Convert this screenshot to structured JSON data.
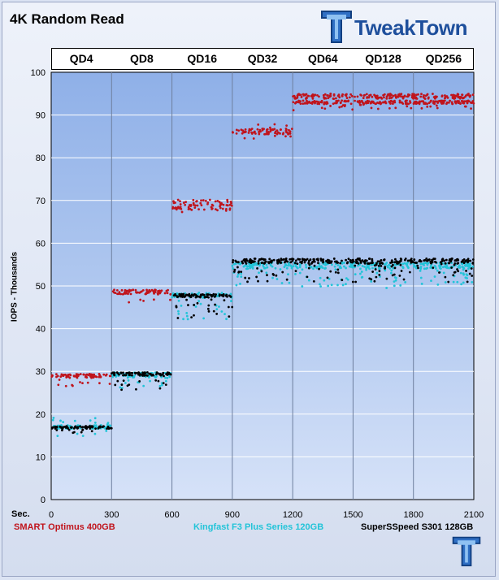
{
  "title": "4K Random Read",
  "logo": {
    "text": "TweakTown",
    "icon": "tweaktown-tt-logo-icon"
  },
  "corner_logo": {
    "icon": "tweaktown-tt-logo-icon"
  },
  "colors": {
    "smart": "#c0141c",
    "kingfast": "#22c4d8",
    "superspeed": "#000000",
    "plot_bg": "#a4bfec"
  },
  "chart_data": {
    "type": "scatter",
    "title": "4K Random Read",
    "xlabel": "Sec.",
    "ylabel": "IOPS - Thousands",
    "xlim": [
      0,
      2100
    ],
    "ylim": [
      0,
      100
    ],
    "x_ticks": [
      0,
      300,
      600,
      900,
      1200,
      1500,
      1800,
      2100
    ],
    "y_ticks": [
      0,
      10,
      20,
      30,
      40,
      50,
      60,
      70,
      80,
      90,
      100
    ],
    "grid": true,
    "legend_position": "bottom",
    "queue_depths": [
      {
        "label": "QD4",
        "start": 0,
        "end": 300
      },
      {
        "label": "QD8",
        "start": 300,
        "end": 600
      },
      {
        "label": "QD16",
        "start": 600,
        "end": 900
      },
      {
        "label": "QD32",
        "start": 900,
        "end": 1200
      },
      {
        "label": "QD64",
        "start": 1200,
        "end": 1500
      },
      {
        "label": "QD128",
        "start": 1500,
        "end": 1800
      },
      {
        "label": "QD256",
        "start": 1800,
        "end": 2100
      }
    ],
    "series": [
      {
        "name": "SMART Optimus 400GB",
        "color": "#c0141c",
        "segments": [
          {
            "x_start": 0,
            "x_end": 300,
            "bands": [
              [
                28.5,
                29.4
              ]
            ],
            "outliers": [
              26.8,
              27.5
            ]
          },
          {
            "x_start": 300,
            "x_end": 600,
            "bands": [
              [
                48.0,
                49.1
              ]
            ],
            "outliers": [
              46.5
            ]
          },
          {
            "x_start": 600,
            "x_end": 900,
            "bands": [
              [
                67.8,
                70.2
              ]
            ],
            "outliers": [
              68.0
            ]
          },
          {
            "x_start": 900,
            "x_end": 1200,
            "bands": [
              [
                85.5,
                86.8
              ]
            ],
            "outliers": [
              84.8,
              87.2
            ]
          },
          {
            "x_start": 1200,
            "x_end": 2100,
            "bands": [
              [
                93.8,
                95.0
              ],
              [
                92.6,
                93.4
              ]
            ],
            "outliers": [
              91.8,
              92.2
            ]
          }
        ]
      },
      {
        "name": "Kingfast  F3 Plus Series 120GB",
        "color": "#22c4d8",
        "segments": [
          {
            "x_start": 0,
            "x_end": 300,
            "bands": [
              [
                16.6,
                17.4
              ]
            ],
            "outliers": [
              15.6,
              18.6,
              17.9
            ]
          },
          {
            "x_start": 300,
            "x_end": 600,
            "bands": [
              [
                28.6,
                29.8
              ]
            ],
            "outliers": [
              26.5,
              27.3,
              28.0
            ]
          },
          {
            "x_start": 600,
            "x_end": 900,
            "bands": [
              [
                47.2,
                48.4
              ]
            ],
            "outliers": [
              42.8,
              44.0,
              45.2,
              46.0
            ]
          },
          {
            "x_start": 900,
            "x_end": 2100,
            "bands": [
              [
                54.0,
                55.5
              ]
            ],
            "outliers": [
              50.2,
              51.5,
              52.5,
              53.2
            ]
          }
        ]
      },
      {
        "name": "SuperSSpeed S301 128GB",
        "color": "#000000",
        "segments": [
          {
            "x_start": 0,
            "x_end": 300,
            "bands": [
              [
                16.6,
                17.2
              ]
            ],
            "outliers": [
              15.8,
              16.0
            ]
          },
          {
            "x_start": 300,
            "x_end": 600,
            "bands": [
              [
                29.0,
                29.8
              ]
            ],
            "outliers": [
              27.5,
              28.2,
              26.2
            ]
          },
          {
            "x_start": 600,
            "x_end": 900,
            "bands": [
              [
                47.3,
                48.1
              ]
            ],
            "outliers": [
              43.0,
              44.5,
              45.5,
              46.2
            ]
          },
          {
            "x_start": 900,
            "x_end": 2100,
            "bands": [
              [
                55.2,
                56.4
              ]
            ],
            "outliers": [
              51.5,
              52.8,
              53.8,
              54.5
            ]
          }
        ]
      }
    ]
  }
}
